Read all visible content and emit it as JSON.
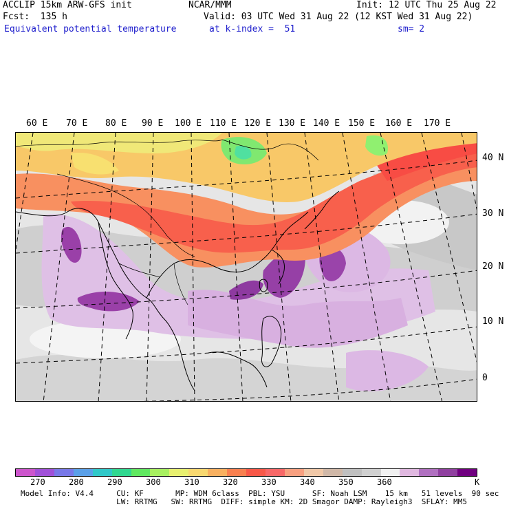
{
  "header": {
    "model_line": "ACCLIP 15km ARW-GFS init",
    "org": "NCAR/MMM",
    "init": "Init: 12 UTC Thu 25 Aug 22",
    "fcst": "Fcst:  135 h",
    "valid": "Valid: 03 UTC Wed 31 Aug 22 (12 KST Wed 31 Aug 22)",
    "field": "Equivalent potential temperature",
    "level": "at k-index =  51",
    "smooth": "sm= 2"
  },
  "map": {
    "lon_labels": [
      "60 E",
      "70 E",
      "80 E",
      "90 E",
      "100 E",
      "110 E",
      "120 E",
      "130 E",
      "140 E",
      "150 E",
      "160 E",
      "170 E"
    ],
    "lat_labels": [
      "40 N",
      "30 N",
      "20 N",
      "10 N",
      "0"
    ]
  },
  "colorbar": {
    "colors": [
      "#cc55cc",
      "#a050d8",
      "#7878e8",
      "#5aa0e8",
      "#30c8c8",
      "#30d890",
      "#60e860",
      "#a8f060",
      "#e8f070",
      "#f8d870",
      "#f8b060",
      "#f88050",
      "#f85848",
      "#f86868",
      "#f8a080",
      "#f0c8a8",
      "#d0b8a8",
      "#c0c0c0",
      "#d0d0d0",
      "#f0f0f0",
      "#e0b8e0",
      "#b070c0",
      "#9040a0",
      "#700080"
    ],
    "ticks": [
      "270",
      "280",
      "290",
      "300",
      "310",
      "320",
      "330",
      "340",
      "350",
      "360"
    ],
    "unit": "K"
  },
  "footer": {
    "line1": "Model Info: V4.4     CU: KF       MP: WDM 6class  PBL: YSU      SF: Noah LSM    15 km   51 levels  90 sec",
    "line2": "                     LW: RRTMG   SW: RRTMG  DIFF: simple KM: 2D Smagor DAMP: Rayleigh3  SFLAY: MM5"
  }
}
